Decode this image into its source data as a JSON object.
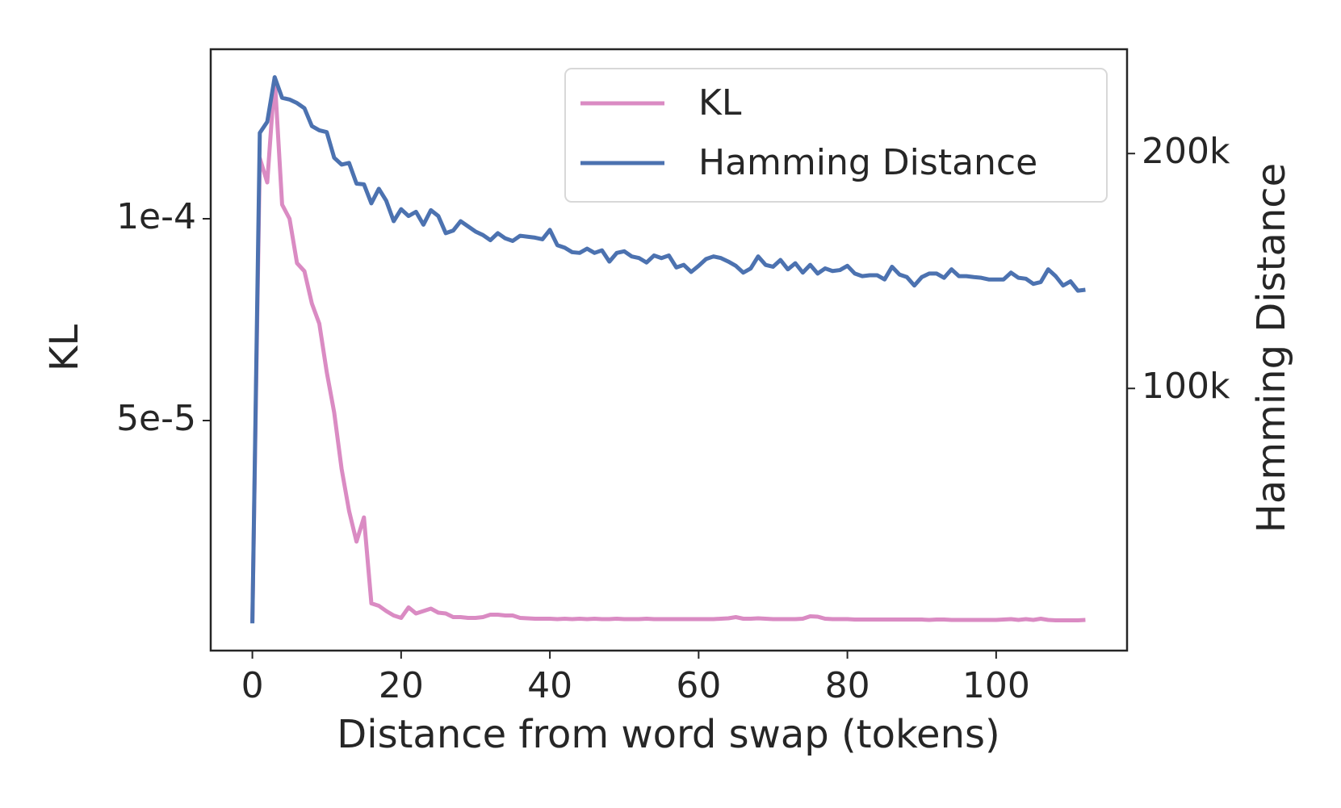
{
  "chart_data": {
    "type": "line",
    "xlabel": "Distance from word swap (tokens)",
    "ylabel": "KL",
    "y2label": "Hamming Distance",
    "x": [
      0,
      1,
      2,
      3,
      4,
      5,
      6,
      7,
      8,
      9,
      10,
      11,
      12,
      13,
      14,
      15,
      16,
      17,
      18,
      19,
      20,
      21,
      22,
      23,
      24,
      25,
      26,
      27,
      28,
      29,
      30,
      31,
      32,
      33,
      34,
      35,
      36,
      37,
      38,
      39,
      40,
      41,
      42,
      43,
      44,
      45,
      46,
      47,
      48,
      49,
      50,
      51,
      52,
      53,
      54,
      55,
      56,
      57,
      58,
      59,
      60,
      61,
      62,
      63,
      64,
      65,
      66,
      67,
      68,
      69,
      70,
      71,
      72,
      73,
      74,
      75,
      76,
      77,
      78,
      79,
      80,
      81,
      82,
      83,
      84,
      85,
      86,
      87,
      88,
      89,
      90,
      91,
      92,
      93,
      94,
      95,
      96,
      97,
      98,
      99,
      100,
      101,
      102,
      103,
      104,
      105,
      106,
      107,
      108,
      109,
      110,
      111,
      112
    ],
    "xlim": [
      -5.6,
      117.6
    ],
    "xticks": [
      0,
      20,
      40,
      60,
      80,
      100
    ],
    "ylim": [
      -7e-06,
      0.000142
    ],
    "yticks": [
      {
        "value": 5e-05,
        "label": "5e-5"
      },
      {
        "value": 0.0001,
        "label": "1e-4"
      }
    ],
    "y2lim": [
      -11600,
      244400
    ],
    "y2ticks": [
      {
        "value": 100000,
        "label": "100k"
      },
      {
        "value": 200000,
        "label": "200k"
      }
    ],
    "grid": false,
    "legend": "upper right",
    "series": [
      {
        "name": "KL",
        "color": "#da8bc3",
        "axis": "y",
        "values": [
          0,
          0.000115,
          0.000109,
          0.000135,
          0.0001035,
          0.0001,
          8.9e-05,
          8.7e-05,
          7.9e-05,
          7.4e-05,
          6.2e-05,
          5.2e-05,
          3.8e-05,
          2.76e-05,
          2e-05,
          2.6e-05,
          4.7e-06,
          4.1e-06,
          2.8e-06,
          1.7e-06,
          1.1e-06,
          3.7e-06,
          2.2e-06,
          2.8e-06,
          3.4e-06,
          2.4e-06,
          2.2e-06,
          1.3e-06,
          1.3e-06,
          1.1e-06,
          1.1e-06,
          1.3e-06,
          1.9e-06,
          1.9e-06,
          1.7e-06,
          1.7e-06,
          1.1e-06,
          1e-06,
          9e-07,
          9e-07,
          9e-07,
          8e-07,
          9e-07,
          8e-07,
          9e-07,
          8e-07,
          9e-07,
          8e-07,
          8e-07,
          9e-07,
          8e-07,
          8e-07,
          8e-07,
          9e-07,
          8e-07,
          8e-07,
          8e-07,
          8e-07,
          8e-07,
          8e-07,
          8e-07,
          8e-07,
          8e-07,
          9e-07,
          1e-06,
          1.3e-06,
          9e-07,
          9e-07,
          1e-06,
          9e-07,
          8e-07,
          8e-07,
          8e-07,
          8e-07,
          9e-07,
          1.5e-06,
          1.4e-06,
          9e-07,
          8e-07,
          8e-07,
          8e-07,
          7e-07,
          7e-07,
          7e-07,
          7e-07,
          7e-07,
          7e-07,
          7e-07,
          7e-07,
          7e-07,
          7e-07,
          6e-07,
          7e-07,
          7e-07,
          6e-07,
          6e-07,
          6e-07,
          6e-07,
          6e-07,
          6e-07,
          6e-07,
          7e-07,
          8e-07,
          6e-07,
          8e-07,
          6e-07,
          9e-07,
          6e-07,
          5e-07,
          5e-07,
          5e-07,
          5e-07,
          6e-07
        ]
      },
      {
        "name": "Hamming Distance",
        "color": "#4c72b0",
        "axis": "y2",
        "values": [
          0,
          208800,
          213500,
          232500,
          223700,
          223000,
          221500,
          219300,
          211700,
          209900,
          209100,
          198200,
          195300,
          196000,
          187200,
          186900,
          178800,
          185000,
          179900,
          171200,
          176300,
          173400,
          175200,
          169700,
          175900,
          173400,
          166100,
          167200,
          171200,
          169000,
          166800,
          165300,
          163100,
          166100,
          163900,
          162800,
          165000,
          164600,
          164200,
          163500,
          167500,
          161000,
          159900,
          158000,
          157700,
          159500,
          157700,
          158800,
          154000,
          157700,
          158400,
          156200,
          155500,
          153600,
          156600,
          155500,
          156600,
          151500,
          152600,
          149600,
          152200,
          155100,
          156200,
          155500,
          154000,
          152200,
          149300,
          151100,
          156200,
          152600,
          151800,
          154700,
          150700,
          153300,
          149300,
          152600,
          148900,
          151100,
          150000,
          150400,
          152200,
          148900,
          147800,
          148200,
          148200,
          146400,
          151800,
          148500,
          147400,
          143800,
          147400,
          148900,
          148900,
          147100,
          150700,
          147800,
          147800,
          147400,
          147100,
          146400,
          146400,
          146400,
          149300,
          147100,
          146700,
          144500,
          145300,
          150700,
          147800,
          143800,
          145600,
          141600,
          142000
        ]
      }
    ]
  }
}
